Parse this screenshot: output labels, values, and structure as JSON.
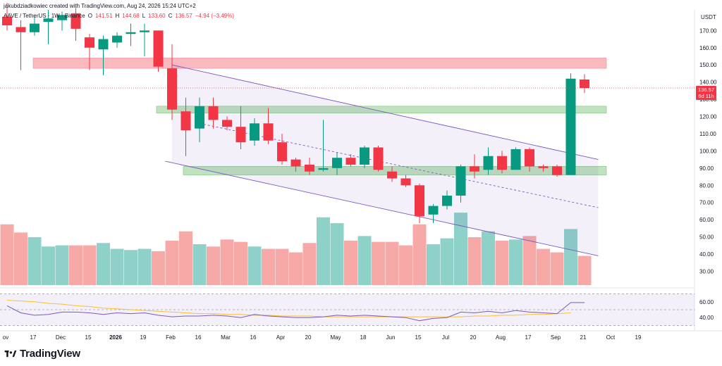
{
  "header": {
    "credit": "jakubdziadkowiec created with TradingView.com, Aug 24, 2026 15:24 UTC+2",
    "symbol": "AAVE / TetherUS · 1W · Binance",
    "o_label": "O",
    "o_value": "141.51",
    "h_label": "H",
    "h_value": "144.68",
    "l_label": "L",
    "l_value": "133.60",
    "c_label": "C",
    "c_value": "136.57",
    "change": "−4.94 (−3.49%)"
  },
  "price_axis": {
    "unit": "USDT",
    "last_price": "136.57",
    "countdown": "6d 11h"
  },
  "logo": {
    "text": "TradingView"
  },
  "colors": {
    "up": "#089981",
    "down": "#f23645",
    "up_vol": "#8ed1c8",
    "down_vol": "#f7a9a7",
    "channel": "#7e57c2",
    "resistance": "#f7a1a8",
    "support": "#9ed29c",
    "rsi": "#7e57c2",
    "rsi_ma": "#fbc02d"
  },
  "chart_data": {
    "type": "candlestick",
    "x_ticks": [
      "ov",
      "17",
      "Dec",
      "15",
      "2026",
      "19",
      "Feb",
      "16",
      "Mar",
      "16",
      "Apr",
      "20",
      "May",
      "18",
      "Jun",
      "15",
      "Jul",
      "20",
      "Aug",
      "17",
      "Sep",
      "21",
      "Oct",
      "19"
    ],
    "y_ticks": [
      "170.00",
      "160.00",
      "150.00",
      "140.00",
      "130.00",
      "120.00",
      "110.00",
      "100.00",
      "90.00",
      "80.00",
      "70.00",
      "60.00",
      "50.00",
      "40.00",
      "30.00"
    ],
    "ylim": [
      22,
      182
    ],
    "candles": [
      {
        "o": 178,
        "h": 186,
        "l": 170,
        "c": 173
      },
      {
        "o": 172,
        "h": 176,
        "l": 147,
        "c": 169
      },
      {
        "o": 169,
        "h": 178,
        "l": 167,
        "c": 174
      },
      {
        "o": 175,
        "h": 182,
        "l": 162,
        "c": 177
      },
      {
        "o": 176,
        "h": 181,
        "l": 170,
        "c": 179
      },
      {
        "o": 180,
        "h": 183,
        "l": 164,
        "c": 171
      },
      {
        "o": 166,
        "h": 168,
        "l": 147,
        "c": 160
      },
      {
        "o": 159,
        "h": 167,
        "l": 144,
        "c": 165
      },
      {
        "o": 163,
        "h": 169,
        "l": 160,
        "c": 167
      },
      {
        "o": 168,
        "h": 174,
        "l": 161,
        "c": 169
      },
      {
        "o": 169,
        "h": 174,
        "l": 155,
        "c": 170
      },
      {
        "o": 170,
        "h": 170,
        "l": 146,
        "c": 149
      },
      {
        "o": 148,
        "h": 162,
        "l": 118,
        "c": 124
      },
      {
        "o": 123,
        "h": 131,
        "l": 97,
        "c": 112
      },
      {
        "o": 113,
        "h": 131,
        "l": 105,
        "c": 126
      },
      {
        "o": 126,
        "h": 131,
        "l": 113,
        "c": 118
      },
      {
        "o": 118,
        "h": 120,
        "l": 112,
        "c": 114
      },
      {
        "o": 114,
        "h": 126,
        "l": 101,
        "c": 105
      },
      {
        "o": 106,
        "h": 119,
        "l": 103,
        "c": 116
      },
      {
        "o": 116,
        "h": 125,
        "l": 104,
        "c": 106
      },
      {
        "o": 105,
        "h": 110,
        "l": 92,
        "c": 94
      },
      {
        "o": 95,
        "h": 96,
        "l": 88,
        "c": 91
      },
      {
        "o": 92,
        "h": 96,
        "l": 86,
        "c": 88
      },
      {
        "o": 89,
        "h": 118,
        "l": 88,
        "c": 90
      },
      {
        "o": 90,
        "h": 99,
        "l": 86,
        "c": 96
      },
      {
        "o": 96,
        "h": 98,
        "l": 91,
        "c": 92
      },
      {
        "o": 92,
        "h": 103,
        "l": 90,
        "c": 102
      },
      {
        "o": 102,
        "h": 103,
        "l": 88,
        "c": 89
      },
      {
        "o": 88,
        "h": 91,
        "l": 82,
        "c": 84
      },
      {
        "o": 84,
        "h": 86,
        "l": 79,
        "c": 80
      },
      {
        "o": 80,
        "h": 81,
        "l": 58,
        "c": 62
      },
      {
        "o": 63,
        "h": 69,
        "l": 58,
        "c": 68
      },
      {
        "o": 68,
        "h": 77,
        "l": 66,
        "c": 74
      },
      {
        "o": 74,
        "h": 92,
        "l": 70,
        "c": 91
      },
      {
        "o": 91,
        "h": 98,
        "l": 84,
        "c": 88
      },
      {
        "o": 89,
        "h": 102,
        "l": 86,
        "c": 97
      },
      {
        "o": 97,
        "h": 100,
        "l": 87,
        "c": 89
      },
      {
        "o": 89,
        "h": 102,
        "l": 89,
        "c": 101
      },
      {
        "o": 101,
        "h": 102,
        "l": 88,
        "c": 91
      },
      {
        "o": 91,
        "h": 92,
        "l": 88,
        "c": 90
      },
      {
        "o": 91,
        "h": 92,
        "l": 85,
        "c": 86
      },
      {
        "o": 86,
        "h": 145,
        "l": 86,
        "c": 142
      },
      {
        "o": 141.51,
        "h": 144.68,
        "l": 133.6,
        "c": 136.57
      }
    ],
    "volume": [
      52,
      45,
      41,
      33,
      34,
      34,
      34,
      36,
      31,
      30,
      31,
      29,
      38,
      46,
      35,
      33,
      39,
      37,
      33,
      31,
      31,
      28,
      36,
      58,
      53,
      38,
      42,
      37,
      37,
      34,
      52,
      35,
      40,
      62,
      41,
      46,
      38,
      39,
      42,
      31,
      28,
      48,
      25
    ],
    "volume_scale_max": 100,
    "resistance_zone": [
      148,
      154
    ],
    "support_zones": [
      [
        122,
        126
      ],
      [
        86,
        91
      ]
    ],
    "channel": {
      "upper": {
        "from": [
          12,
          150
        ],
        "to": [
          43,
          95
        ]
      },
      "lower": {
        "from": [
          11.5,
          94
        ],
        "to": [
          43,
          39
        ]
      },
      "mid": {
        "from": [
          14,
          116
        ],
        "to": [
          43,
          67
        ]
      }
    },
    "rsi": {
      "values": [
        55,
        46,
        43,
        44,
        47,
        47,
        46,
        44,
        46,
        45,
        46,
        43,
        41,
        42,
        42,
        43,
        42,
        40,
        44,
        42,
        41,
        40,
        40,
        41,
        43,
        42,
        43,
        42,
        41,
        40,
        36,
        39,
        40,
        47,
        46,
        48,
        46,
        49,
        47,
        46,
        45,
        59,
        59
      ],
      "ma": [
        62,
        61,
        60,
        58,
        57,
        55,
        54,
        52,
        51,
        50,
        49,
        48,
        47,
        46,
        45,
        45,
        44,
        44,
        43,
        43,
        42,
        42,
        42,
        41,
        41,
        41,
        41,
        41,
        41,
        41,
        41,
        41,
        41,
        41,
        42,
        42,
        43,
        43,
        44,
        44,
        45,
        46
      ],
      "ylim": [
        25,
        75
      ],
      "ticks": [
        "60.00",
        "40.00"
      ],
      "band_upper": 70,
      "band_lower": 30
    }
  }
}
